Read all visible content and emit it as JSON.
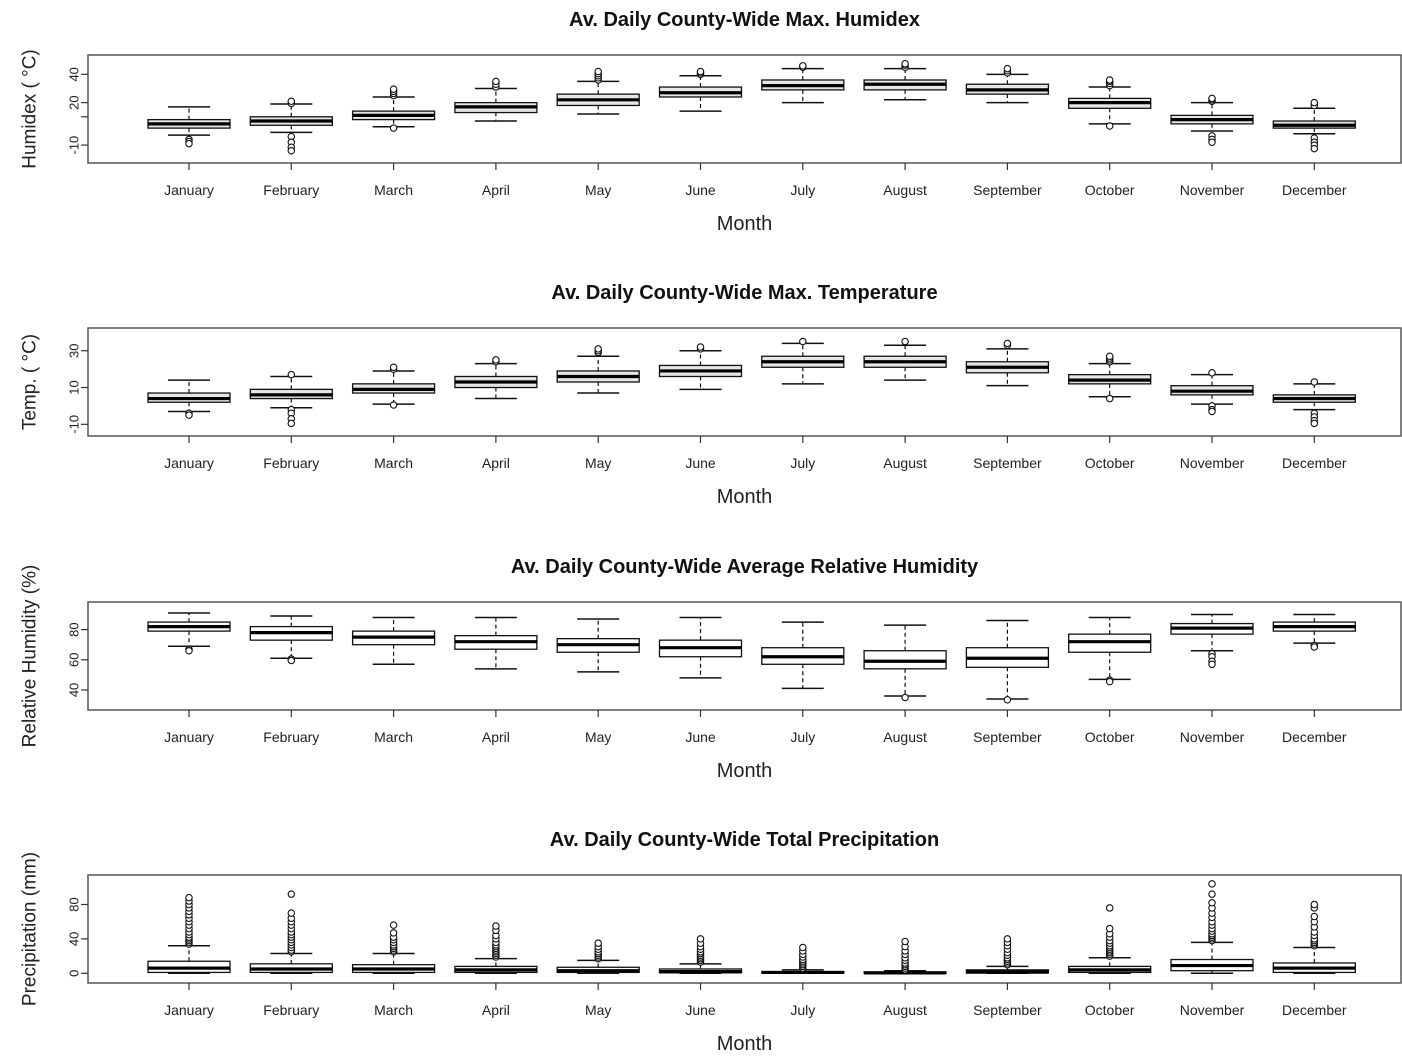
{
  "chart_data": [
    {
      "type": "box",
      "title": "Av. Daily County-Wide Max. Humidex",
      "xlabel": "Month",
      "ylabel": "Humidex ( °C)",
      "ylim": [
        -17,
        48
      ],
      "yticks": [
        -10,
        10,
        20,
        40
      ],
      "ytick_labels": [
        "-10",
        "",
        "20",
        "40"
      ],
      "fill": "#e6e6e6",
      "categories": [
        "January",
        "February",
        "March",
        "April",
        "May",
        "June",
        "July",
        "August",
        "September",
        "October",
        "November",
        "December"
      ],
      "boxes": [
        {
          "whislo": -3,
          "q1": 2,
          "med": 5,
          "q3": 8,
          "whishi": 17,
          "outliers": [
            -6,
            -7.5,
            -9
          ]
        },
        {
          "whislo": -1,
          "q1": 4,
          "med": 7,
          "q3": 10,
          "whishi": 19,
          "outliers": [
            19.5,
            21,
            -4,
            -8,
            -11.5,
            -14
          ]
        },
        {
          "whislo": 3,
          "q1": 8,
          "med": 11,
          "q3": 14,
          "whishi": 24,
          "outliers": [
            25,
            26.5,
            28,
            29.5,
            2
          ]
        },
        {
          "whislo": 7,
          "q1": 13,
          "med": 17,
          "q3": 20,
          "whishi": 30,
          "outliers": [
            31,
            33,
            35
          ]
        },
        {
          "whislo": 12,
          "q1": 18,
          "med": 22,
          "q3": 26,
          "whishi": 35,
          "outliers": [
            36,
            37.5,
            39,
            40.5,
            42
          ]
        },
        {
          "whislo": 14,
          "q1": 24,
          "med": 27,
          "q3": 31,
          "whishi": 39,
          "outliers": [
            40,
            41,
            42
          ]
        },
        {
          "whislo": 20,
          "q1": 29,
          "med": 32,
          "q3": 36,
          "whishi": 44,
          "outliers": [
            45,
            46
          ]
        },
        {
          "whislo": 22,
          "q1": 29,
          "med": 33,
          "q3": 36,
          "whishi": 44,
          "outliers": [
            45,
            46.5,
            47.5
          ]
        },
        {
          "whislo": 20,
          "q1": 26,
          "med": 29,
          "q3": 33,
          "whishi": 40,
          "outliers": [
            41,
            42.5,
            44
          ]
        },
        {
          "whislo": 5,
          "q1": 16,
          "med": 20,
          "q3": 23,
          "whishi": 31,
          "outliers": [
            32,
            33.5,
            35,
            36,
            3.5
          ]
        },
        {
          "whislo": 0,
          "q1": 5,
          "med": 8,
          "q3": 11,
          "whishi": 20,
          "outliers": [
            21,
            22,
            23,
            -3.5,
            -6,
            -8
          ]
        },
        {
          "whislo": -2,
          "q1": 2,
          "med": 4,
          "q3": 7,
          "whishi": 16,
          "outliers": [
            18,
            20,
            -5,
            -8,
            -10,
            -12.5
          ]
        }
      ]
    },
    {
      "type": "box",
      "title": "Av. Daily County-Wide Max. Temperature",
      "xlabel": "Month",
      "ylabel": "Temp. ( °C)",
      "ylim": [
        -12,
        38
      ],
      "yticks": [
        -10,
        10,
        30
      ],
      "ytick_labels": [
        "-10",
        "10",
        "30"
      ],
      "fill": "#e6e6e6",
      "categories": [
        "January",
        "February",
        "March",
        "April",
        "May",
        "June",
        "July",
        "August",
        "September",
        "October",
        "November",
        "December"
      ],
      "boxes": [
        {
          "whislo": -3,
          "q1": 2,
          "med": 4,
          "q3": 7,
          "whishi": 14,
          "outliers": [
            -4,
            -5
          ]
        },
        {
          "whislo": -1,
          "q1": 4,
          "med": 6,
          "q3": 9,
          "whishi": 16,
          "outliers": [
            17,
            -2,
            -4,
            -7,
            -9.5
          ]
        },
        {
          "whislo": 1,
          "q1": 7,
          "med": 9,
          "q3": 12,
          "whishi": 19,
          "outliers": [
            20,
            21,
            0.5
          ]
        },
        {
          "whislo": 4,
          "q1": 10,
          "med": 13,
          "q3": 16,
          "whishi": 23,
          "outliers": [
            24,
            25
          ]
        },
        {
          "whislo": 7,
          "q1": 13,
          "med": 16,
          "q3": 19,
          "whishi": 27,
          "outliers": [
            29,
            30,
            31
          ]
        },
        {
          "whislo": 9,
          "q1": 16,
          "med": 19,
          "q3": 22,
          "whishi": 30,
          "outliers": [
            31,
            32
          ]
        },
        {
          "whislo": 12,
          "q1": 21,
          "med": 24,
          "q3": 27,
          "whishi": 34,
          "outliers": [
            35
          ]
        },
        {
          "whislo": 14,
          "q1": 21,
          "med": 24,
          "q3": 27,
          "whishi": 33,
          "outliers": [
            35
          ]
        },
        {
          "whislo": 11,
          "q1": 18,
          "med": 21,
          "q3": 24,
          "whishi": 31,
          "outliers": [
            33,
            34
          ]
        },
        {
          "whislo": 5,
          "q1": 12,
          "med": 14,
          "q3": 17,
          "whishi": 23,
          "outliers": [
            24,
            25,
            26,
            27,
            4
          ]
        },
        {
          "whislo": 1,
          "q1": 6,
          "med": 8,
          "q3": 11,
          "whishi": 17,
          "outliers": [
            18,
            0,
            -2,
            -3
          ]
        },
        {
          "whislo": -2,
          "q1": 2,
          "med": 4,
          "q3": 6,
          "whishi": 12,
          "outliers": [
            13,
            -4,
            -6,
            -8,
            -9.5
          ]
        }
      ]
    },
    {
      "type": "box",
      "title": "Av. Daily County-Wide Average Relative Humidity",
      "xlabel": "Month",
      "ylabel": "Relative Humidity (%)",
      "ylim": [
        32,
        93
      ],
      "yticks": [
        40,
        60,
        80
      ],
      "ytick_labels": [
        "40",
        "60",
        "80"
      ],
      "fill": "#ffffff",
      "categories": [
        "January",
        "February",
        "March",
        "April",
        "May",
        "June",
        "July",
        "August",
        "September",
        "October",
        "November",
        "December"
      ],
      "boxes": [
        {
          "whislo": 69,
          "q1": 79,
          "med": 82,
          "q3": 85,
          "whishi": 91,
          "outliers": [
            67,
            66
          ]
        },
        {
          "whislo": 61,
          "q1": 73,
          "med": 78,
          "q3": 82,
          "whishi": 89,
          "outliers": [
            60.5,
            59.5
          ]
        },
        {
          "whislo": 57,
          "q1": 70,
          "med": 75,
          "q3": 79,
          "whishi": 88,
          "outliers": []
        },
        {
          "whislo": 54,
          "q1": 67,
          "med": 72,
          "q3": 76,
          "whishi": 88,
          "outliers": []
        },
        {
          "whislo": 52,
          "q1": 65,
          "med": 70,
          "q3": 74,
          "whishi": 87,
          "outliers": []
        },
        {
          "whislo": 48,
          "q1": 62,
          "med": 68,
          "q3": 73,
          "whishi": 88,
          "outliers": []
        },
        {
          "whislo": 41,
          "q1": 57,
          "med": 62,
          "q3": 68,
          "whishi": 85,
          "outliers": []
        },
        {
          "whislo": 36,
          "q1": 54,
          "med": 59,
          "q3": 66,
          "whishi": 83,
          "outliers": [
            35
          ]
        },
        {
          "whislo": 34,
          "q1": 55,
          "med": 61,
          "q3": 68,
          "whishi": 86,
          "outliers": [
            33.5
          ]
        },
        {
          "whislo": 47,
          "q1": 65,
          "med": 72,
          "q3": 77,
          "whishi": 88,
          "outliers": [
            46.5,
            45.5
          ]
        },
        {
          "whislo": 66,
          "q1": 77,
          "med": 81,
          "q3": 84,
          "whishi": 90,
          "outliers": [
            64,
            62,
            59,
            57
          ]
        },
        {
          "whislo": 71,
          "q1": 79,
          "med": 82,
          "q3": 85,
          "whishi": 90,
          "outliers": [
            69.5,
            68.5
          ]
        }
      ]
    },
    {
      "type": "box",
      "title": "Av. Daily County-Wide Total Precipitation",
      "xlabel": "Month",
      "ylabel": "Precipitation (mm)",
      "ylim": [
        -2,
        105
      ],
      "yticks": [
        0,
        40,
        80
      ],
      "ytick_labels": [
        "0",
        "40",
        "80"
      ],
      "fill": "#ffffff",
      "categories": [
        "January",
        "February",
        "March",
        "April",
        "May",
        "June",
        "July",
        "August",
        "September",
        "October",
        "November",
        "December"
      ],
      "boxes": [
        {
          "whislo": 0,
          "q1": 1,
          "med": 6,
          "q3": 14,
          "whishi": 32,
          "outliers": [
            34,
            36,
            38,
            40,
            42,
            45,
            48,
            52,
            56,
            60,
            64,
            68,
            72,
            76,
            80,
            84,
            88
          ]
        },
        {
          "whislo": 0,
          "q1": 1,
          "med": 5,
          "q3": 11,
          "whishi": 23,
          "outliers": [
            25,
            27,
            30,
            33,
            36,
            39,
            42,
            45,
            48,
            52,
            56,
            60,
            64,
            70,
            92
          ]
        },
        {
          "whislo": 0,
          "q1": 1,
          "med": 5,
          "q3": 10,
          "whishi": 23,
          "outliers": [
            25,
            27,
            29,
            31,
            33,
            36,
            39,
            42,
            47,
            56
          ]
        },
        {
          "whislo": 0,
          "q1": 1,
          "med": 4,
          "q3": 8,
          "whishi": 17,
          "outliers": [
            19,
            21,
            23,
            25,
            27,
            29,
            31,
            33,
            36,
            40,
            44,
            50,
            55
          ]
        },
        {
          "whislo": 0,
          "q1": 1,
          "med": 3,
          "q3": 7,
          "whishi": 15,
          "outliers": [
            17,
            19,
            21,
            23,
            25,
            28,
            31,
            35
          ]
        },
        {
          "whislo": 0,
          "q1": 0.5,
          "med": 2,
          "q3": 5,
          "whishi": 11,
          "outliers": [
            13,
            15,
            17,
            19,
            21,
            23,
            25,
            28,
            31,
            35,
            40
          ]
        },
        {
          "whislo": 0,
          "q1": 0.2,
          "med": 1,
          "q3": 2,
          "whishi": 4,
          "outliers": [
            5,
            6,
            8,
            10,
            12,
            14,
            16,
            19,
            22,
            26,
            30
          ]
        },
        {
          "whislo": 0,
          "q1": 0.1,
          "med": 0.5,
          "q3": 1.5,
          "whishi": 3,
          "outliers": [
            4,
            6,
            8,
            10,
            12,
            15,
            18,
            22,
            26,
            31,
            37
          ]
        },
        {
          "whislo": 0,
          "q1": 0.3,
          "med": 1.5,
          "q3": 4,
          "whishi": 8,
          "outliers": [
            10,
            12,
            14,
            16,
            18,
            21,
            24,
            28,
            32,
            36,
            40
          ]
        },
        {
          "whislo": 0,
          "q1": 1,
          "med": 4,
          "q3": 8,
          "whishi": 18,
          "outliers": [
            20,
            22,
            24,
            26,
            28,
            30,
            32,
            35,
            38,
            42,
            46,
            52,
            76
          ]
        },
        {
          "whislo": 0,
          "q1": 3,
          "med": 9,
          "q3": 16,
          "whishi": 36,
          "outliers": [
            38,
            40,
            42,
            44,
            46,
            49,
            52,
            56,
            60,
            65,
            70,
            76,
            82,
            92,
            104
          ]
        },
        {
          "whislo": 0,
          "q1": 1,
          "med": 6,
          "q3": 12,
          "whishi": 30,
          "outliers": [
            32,
            34,
            36,
            38,
            40,
            44,
            48,
            54,
            60,
            66,
            76,
            80
          ]
        }
      ]
    }
  ]
}
